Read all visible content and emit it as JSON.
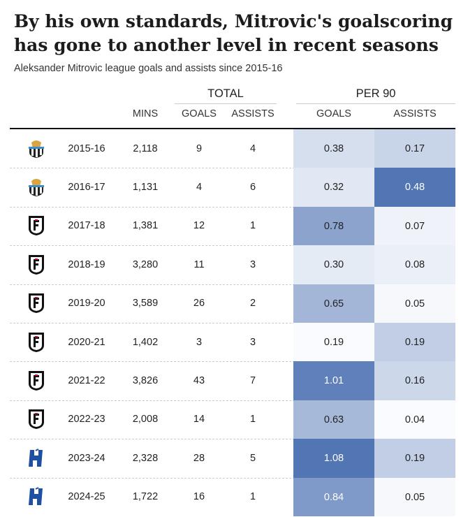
{
  "header": {
    "title": "By his own standards, Mitrovic's goalscoring has gone to another level in recent seasons",
    "subtitle": "Aleksander Mitrovic league goals and assists since 2015-16"
  },
  "table": {
    "groups": [
      "TOTAL",
      "PER 90"
    ],
    "columns": [
      "MINS",
      "GOALS",
      "ASSISTS",
      "GOALS",
      "ASSISTS"
    ],
    "rows": [
      [
        "2015-16",
        "2,118",
        "9",
        "4",
        "0.38",
        "0.17"
      ],
      [
        "2016-17",
        "1,131",
        "4",
        "6",
        "0.32",
        "0.48"
      ],
      [
        "2017-18",
        "1,381",
        "12",
        "1",
        "0.78",
        "0.07"
      ],
      [
        "2018-19",
        "3,280",
        "11",
        "3",
        "0.30",
        "0.08"
      ],
      [
        "2019-20",
        "3,589",
        "26",
        "2",
        "0.65",
        "0.05"
      ],
      [
        "2020-21",
        "1,402",
        "3",
        "3",
        "0.19",
        "0.19"
      ],
      [
        "2021-22",
        "3,826",
        "43",
        "7",
        "1.01",
        "0.16"
      ],
      [
        "2022-23",
        "2,008",
        "14",
        "1",
        "0.63",
        "0.04"
      ],
      [
        "2023-24",
        "2,328",
        "28",
        "5",
        "1.08",
        "0.19"
      ],
      [
        "2024-25",
        "1,722",
        "16",
        "1",
        "0.84",
        "0.05"
      ]
    ]
  }
}
